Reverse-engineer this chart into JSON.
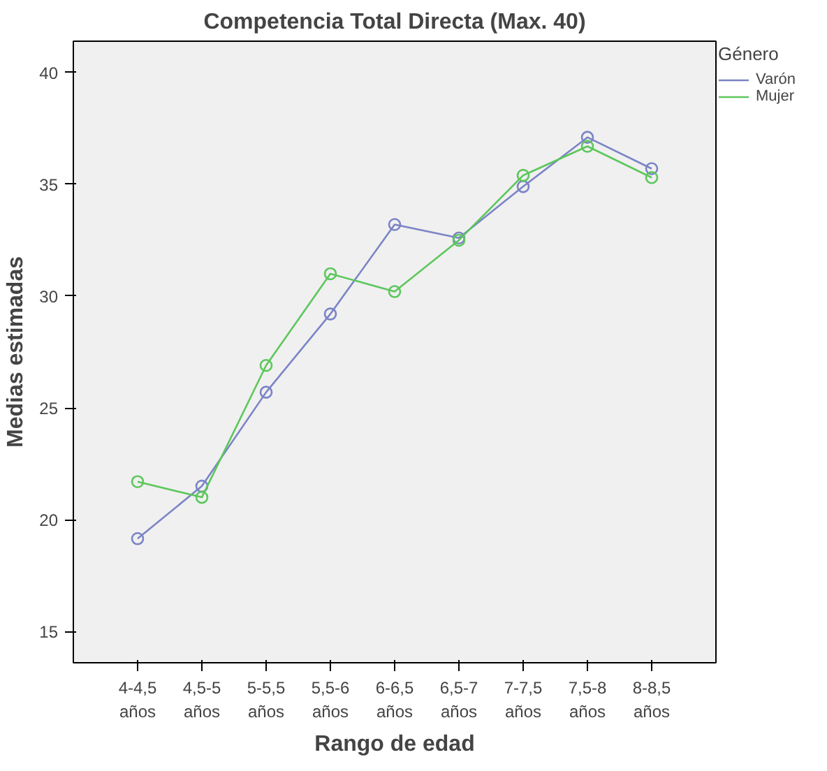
{
  "chart_data": {
    "type": "line",
    "title": "Competencia Total Directa (Max. 40)",
    "xlabel": "Rango de edad",
    "ylabel": "Medias estimadas",
    "legend_title": "Género",
    "categories": [
      "4-4,5 años",
      "4,5-5 años",
      "5-5,5 años",
      "5,5-6 años",
      "6-6,5 años",
      "6,5-7 años",
      "7-7,5 años",
      "7,5-8 años",
      "8-8,5 años"
    ],
    "series": [
      {
        "name": "Varón",
        "color": "#7b84c6",
        "values": [
          19.15,
          21.5,
          25.7,
          29.2,
          33.2,
          32.6,
          34.9,
          37.1,
          35.7
        ]
      },
      {
        "name": "Mujer",
        "color": "#5cc75c",
        "values": [
          21.7,
          21.0,
          26.9,
          31.0,
          30.2,
          32.5,
          35.4,
          36.7,
          35.3
        ]
      }
    ],
    "ylim": [
      13.6,
      41.4
    ],
    "yticks": [
      15,
      20,
      25,
      30,
      35,
      40
    ],
    "grid": false,
    "legend": "top right",
    "marker": "circle",
    "line_style": "solid"
  }
}
